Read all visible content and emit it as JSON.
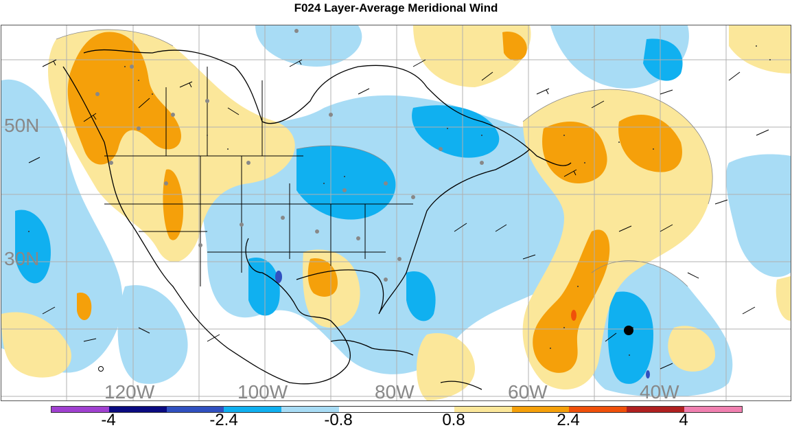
{
  "title": "F024 Layer-Average Meridional Wind",
  "map": {
    "lat_labels": [
      "50N",
      "30N"
    ],
    "lon_labels": [
      "120W",
      "100W",
      "80W",
      "60W",
      "40W"
    ]
  },
  "colorbar": {
    "colors": [
      "#a040d0",
      "#0a0a80",
      "#3050c0",
      "#10b0f0",
      "#a8dcf5",
      "#ffffff",
      "#ffffff",
      "#fbe79a",
      "#f5a00a",
      "#f0500a",
      "#b02020",
      "#f080b0"
    ],
    "tick_labels": [
      "-4",
      "-2.4",
      "-0.8",
      "0.8",
      "2.4",
      "4"
    ]
  }
}
